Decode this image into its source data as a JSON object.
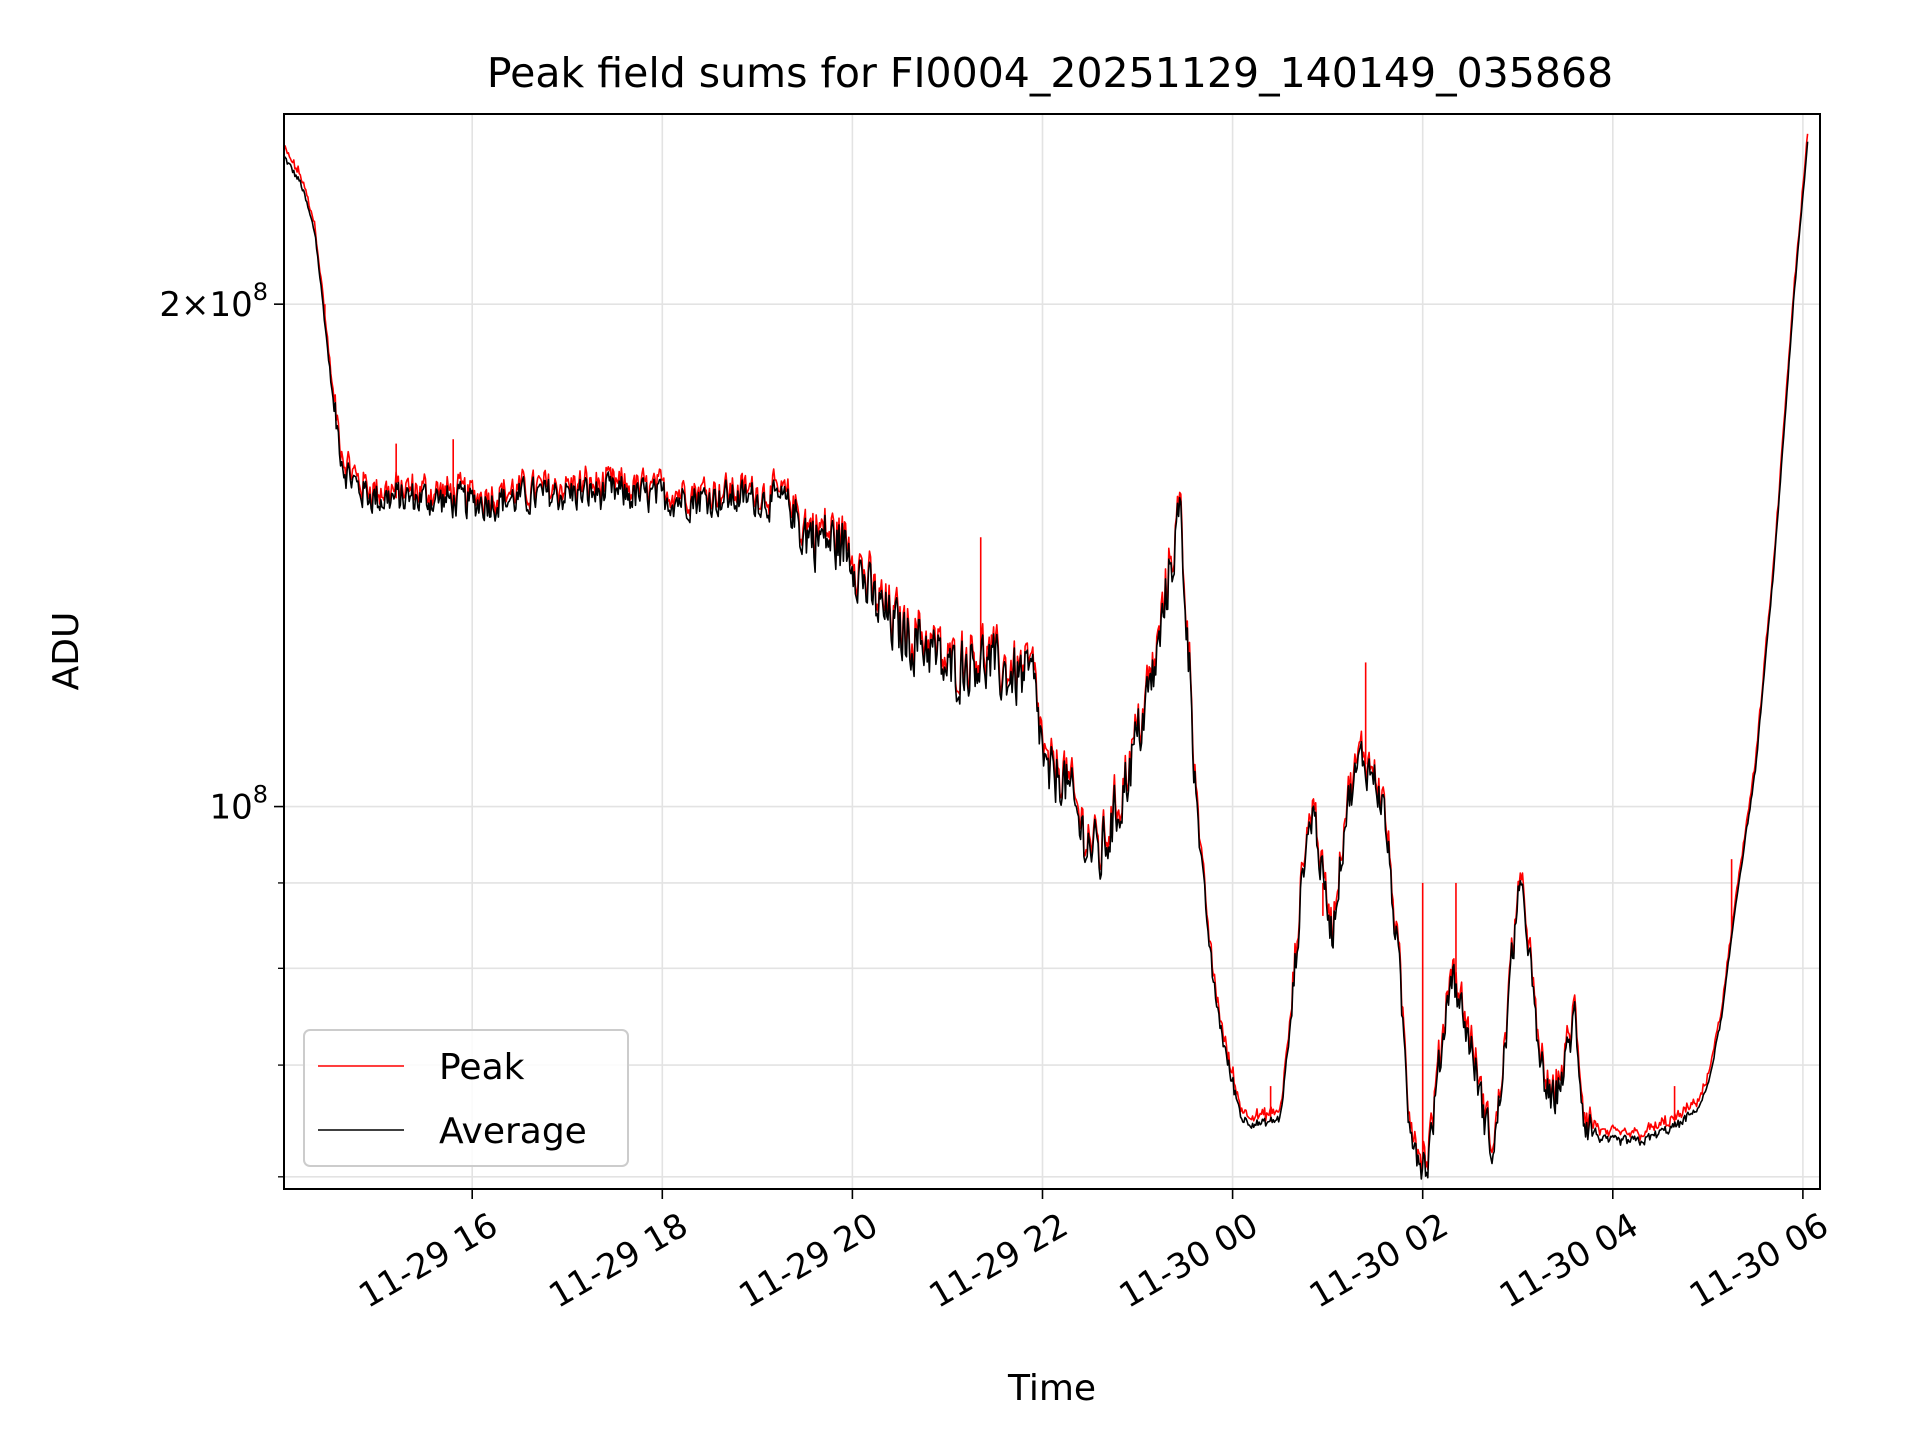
{
  "chart_data": {
    "type": "line",
    "title": "Peak field sums for FI0004_20251129_140149_035868",
    "xlabel": "Time",
    "ylabel": "ADU",
    "y_scale": "log",
    "ylim": [
      59000000,
      260000000
    ],
    "xlim_hours": [
      14.02,
      30.18
    ],
    "x_tick_hours": [
      16,
      18,
      20,
      22,
      24,
      26,
      28,
      30
    ],
    "x_tick_labels": [
      "11-29 16",
      "11-29 18",
      "11-29 20",
      "11-29 22",
      "11-30 00",
      "11-30 02",
      "11-30 04",
      "11-30 06"
    ],
    "y_major_ticks": [
      {
        "value": 100000000,
        "mantissa": "",
        "exponent": "8",
        "label_base": "10"
      },
      {
        "value": 200000000,
        "mantissa": "2",
        "exponent": "8",
        "label_base": "10"
      }
    ],
    "y_minor_ticks": [
      60000000,
      70000000,
      80000000,
      90000000
    ],
    "grid": true,
    "legend_position": "lower-left",
    "series": [
      {
        "name": "Peak",
        "color": "#ff0000",
        "spikes": [
          {
            "hour": 14.45,
            "value": 200000000
          },
          {
            "hour": 15.2,
            "value": 165000000
          },
          {
            "hour": 15.8,
            "value": 166000000
          },
          {
            "hour": 21.35,
            "value": 145000000
          },
          {
            "hour": 24.4,
            "value": 68000000
          },
          {
            "hour": 24.95,
            "value": 86000000
          },
          {
            "hour": 25.4,
            "value": 122000000
          },
          {
            "hour": 26.0,
            "value": 90000000
          },
          {
            "hour": 26.35,
            "value": 90000000
          },
          {
            "hour": 28.65,
            "value": 68000000
          },
          {
            "hour": 29.25,
            "value": 93000000
          }
        ]
      },
      {
        "name": "Average",
        "color": "#000000",
        "keypoints": [
          [
            14.02,
            245000000
          ],
          [
            14.2,
            236000000
          ],
          [
            14.35,
            220000000
          ],
          [
            14.45,
            195000000
          ],
          [
            14.55,
            172000000
          ],
          [
            14.65,
            160000000
          ],
          [
            14.8,
            155000000
          ],
          [
            15.0,
            153000000
          ],
          [
            15.5,
            153000000
          ],
          [
            16.0,
            152000000
          ],
          [
            16.5,
            153000000
          ],
          [
            17.0,
            154000000
          ],
          [
            17.5,
            154000000
          ],
          [
            18.0,
            153000000
          ],
          [
            18.5,
            153000000
          ],
          [
            19.0,
            153000000
          ],
          [
            19.3,
            152000000
          ],
          [
            19.5,
            146000000
          ],
          [
            19.8,
            144000000
          ],
          [
            20.0,
            142000000
          ],
          [
            20.2,
            133000000
          ],
          [
            20.5,
            127000000
          ],
          [
            20.8,
            125000000
          ],
          [
            21.0,
            120000000
          ],
          [
            21.3,
            123000000
          ],
          [
            21.6,
            120000000
          ],
          [
            21.9,
            119000000
          ],
          [
            22.05,
            103000000
          ],
          [
            22.2,
            105000000
          ],
          [
            22.4,
            97000000
          ],
          [
            22.6,
            93000000
          ],
          [
            22.8,
            100000000
          ],
          [
            23.0,
            110000000
          ],
          [
            23.2,
            122000000
          ],
          [
            23.35,
            140000000
          ],
          [
            23.45,
            150000000
          ],
          [
            23.55,
            120000000
          ],
          [
            23.65,
            95000000
          ],
          [
            23.8,
            78000000
          ],
          [
            23.95,
            70000000
          ],
          [
            24.1,
            65000000
          ],
          [
            24.3,
            64500000
          ],
          [
            24.5,
            65000000
          ],
          [
            24.6,
            73000000
          ],
          [
            24.75,
            93000000
          ],
          [
            24.85,
            100000000
          ],
          [
            24.95,
            90000000
          ],
          [
            25.05,
            84000000
          ],
          [
            25.2,
            100000000
          ],
          [
            25.35,
            107000000
          ],
          [
            25.5,
            104000000
          ],
          [
            25.6,
            99000000
          ],
          [
            25.75,
            80000000
          ],
          [
            25.85,
            66000000
          ],
          [
            25.95,
            62000000
          ],
          [
            26.05,
            61000000
          ],
          [
            26.15,
            68000000
          ],
          [
            26.3,
            80000000
          ],
          [
            26.45,
            74000000
          ],
          [
            26.55,
            70000000
          ],
          [
            26.65,
            65000000
          ],
          [
            26.75,
            62000000
          ],
          [
            26.85,
            70000000
          ],
          [
            26.95,
            82000000
          ],
          [
            27.0,
            89000000
          ],
          [
            27.1,
            85000000
          ],
          [
            27.2,
            72000000
          ],
          [
            27.35,
            66000000
          ],
          [
            27.5,
            70000000
          ],
          [
            27.6,
            75000000
          ],
          [
            27.7,
            65000000
          ],
          [
            27.9,
            63000000
          ],
          [
            28.3,
            63000000
          ],
          [
            28.7,
            64500000
          ],
          [
            28.9,
            66000000
          ],
          [
            29.0,
            68000000
          ],
          [
            29.15,
            75000000
          ],
          [
            29.3,
            88000000
          ],
          [
            29.5,
            105000000
          ],
          [
            29.7,
            140000000
          ],
          [
            29.9,
            200000000
          ],
          [
            30.05,
            250000000
          ]
        ]
      }
    ]
  }
}
